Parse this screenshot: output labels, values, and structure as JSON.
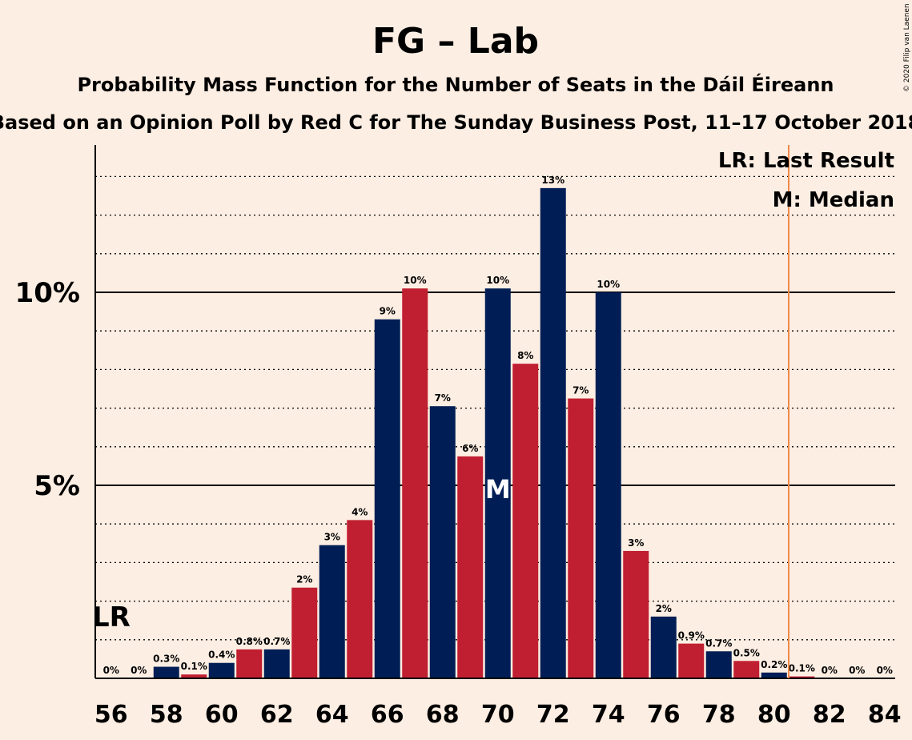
{
  "title": "FG – Lab",
  "subtitle1": "Probability Mass Function for the Number of Seats in the Dáil Éireann",
  "subtitle2": "Based on an Opinion Poll by Red C for The Sunday Business Post, 11–17 October 2018",
  "copyright": "© 2020 Filip van Laenen",
  "legend": {
    "lr": "LR: Last Result",
    "median": "M: Median"
  },
  "colors": {
    "background": "#FDEEE3",
    "navy": "#001E55",
    "red": "#C01F31",
    "last_result_line": "#F08A4B",
    "text": "#0B1A12"
  },
  "chart_data": {
    "type": "bar",
    "x": [
      56,
      57,
      58,
      59,
      60,
      61,
      62,
      63,
      64,
      65,
      66,
      67,
      68,
      69,
      70,
      71,
      72,
      73,
      74,
      75,
      76,
      77,
      78,
      79,
      80,
      81,
      82,
      83,
      84
    ],
    "values": [
      0,
      0,
      0.3,
      0.1,
      0.4,
      0.75,
      0.75,
      2.35,
      3.45,
      4.1,
      9.3,
      10.1,
      7.05,
      5.75,
      10.1,
      8.15,
      12.7,
      7.25,
      10.0,
      3.3,
      1.6,
      0.9,
      0.7,
      0.45,
      0.15,
      0.05,
      0,
      0,
      0
    ],
    "labels": [
      "0%",
      "0%",
      "0.3%",
      "0.1%",
      "0.4%",
      "0.8%",
      "0.7%",
      "2%",
      "3%",
      "4%",
      "9%",
      "10%",
      "7%",
      "6%",
      "10%",
      "8%",
      "13%",
      "7%",
      "10%",
      "3%",
      "2%",
      "0.9%",
      "0.7%",
      "0.5%",
      "0.2%",
      "0.1%",
      "0%",
      "0%",
      "0%"
    ],
    "x_tick_labels": [
      "56",
      "58",
      "60",
      "62",
      "64",
      "66",
      "68",
      "70",
      "72",
      "74",
      "76",
      "78",
      "80",
      "82",
      "84"
    ],
    "y_tick_labels": [
      "5%",
      "10%"
    ],
    "ylim": [
      0,
      13.8
    ],
    "xlim": [
      55.5,
      84.5
    ],
    "last_result": 81,
    "last_result_label": "LR",
    "median": 70,
    "median_label": "M",
    "grid": "dotted every 1%, solid at 5% and 10%"
  }
}
